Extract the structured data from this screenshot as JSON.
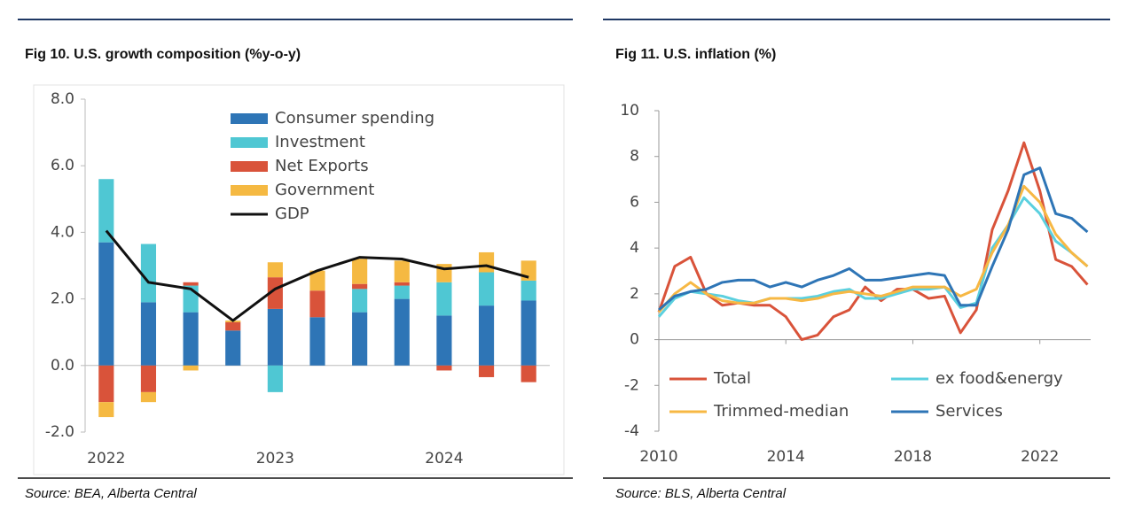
{
  "chart_data": [
    {
      "type": "bar",
      "title": "Fig 10. U.S. growth composition (%y-o-y)",
      "source": "Source: BEA, Alberta Central",
      "categories": [
        "2022",
        null,
        null,
        null,
        "2023",
        null,
        null,
        null,
        "2024",
        null,
        null
      ],
      "stacked": true,
      "legend": "upper right",
      "series": [
        {
          "name": "Consumer spending",
          "color": "#2e75b6",
          "values": [
            3.7,
            1.9,
            1.6,
            1.05,
            1.7,
            1.45,
            1.6,
            2.0,
            1.5,
            1.8,
            1.95
          ]
        },
        {
          "name": "Investment",
          "color": "#4fc7d3",
          "values": [
            1.9,
            1.75,
            0.8,
            0,
            -0.8,
            0,
            0.7,
            0.4,
            1.0,
            1.0,
            0.6
          ]
        },
        {
          "name": "Net Exports",
          "color": "#d9533a",
          "values": [
            -1.1,
            -0.8,
            0.1,
            0.25,
            0.95,
            0.8,
            0.15,
            0.1,
            -0.15,
            -0.35,
            -0.5
          ]
        },
        {
          "name": "Government",
          "color": "#f5b942",
          "values": [
            -0.45,
            -0.3,
            -0.15,
            0.05,
            0.45,
            0.6,
            0.75,
            0.65,
            0.55,
            0.6,
            0.6
          ]
        },
        {
          "name": "GDP",
          "color": "#111111",
          "type": "line",
          "values": [
            4.05,
            2.5,
            2.3,
            1.35,
            2.3,
            2.85,
            3.25,
            3.2,
            2.9,
            3.0,
            2.65
          ]
        }
      ],
      "ylim": [
        -2,
        8
      ],
      "yticks": [
        {
          "value": -2,
          "label": "-2.0"
        },
        {
          "value": 0,
          "label": "0.0"
        },
        {
          "value": 2,
          "label": "2.0"
        },
        {
          "value": 4,
          "label": "4.0"
        },
        {
          "value": 6,
          "label": "6.0"
        },
        {
          "value": 8,
          "label": "8.0"
        }
      ]
    },
    {
      "type": "line",
      "title": "Fig 11. U.S. inflation (%)",
      "source": "Source: BLS, Alberta Central",
      "legend": "lower",
      "x": [
        2010,
        2010.5,
        2011,
        2011.5,
        2012,
        2012.5,
        2013,
        2013.5,
        2014,
        2014.5,
        2015,
        2015.5,
        2016,
        2016.5,
        2017,
        2017.5,
        2018,
        2018.5,
        2019,
        2019.5,
        2020,
        2020.5,
        2021,
        2021.5,
        2022,
        2022.5,
        2023,
        2023.5
      ],
      "series": [
        {
          "name": "Total",
          "color": "#d9533a",
          "values": [
            1.2,
            3.2,
            3.6,
            2.0,
            1.5,
            1.6,
            1.5,
            1.5,
            1.0,
            0.0,
            0.2,
            1.0,
            1.3,
            2.3,
            1.7,
            2.2,
            2.2,
            1.8,
            1.9,
            0.3,
            1.3,
            4.8,
            6.5,
            8.6,
            6.5,
            3.5,
            3.2,
            2.4
          ]
        },
        {
          "name": "ex food&energy",
          "color": "#5bd0df",
          "values": [
            1.0,
            1.8,
            2.1,
            2.0,
            1.9,
            1.7,
            1.6,
            1.8,
            1.8,
            1.8,
            1.9,
            2.1,
            2.2,
            1.8,
            1.8,
            2.0,
            2.2,
            2.2,
            2.3,
            1.4,
            1.6,
            4.0,
            5.0,
            6.2,
            5.5,
            4.3,
            3.8,
            3.2
          ]
        },
        {
          "name": "Trimmed-median",
          "color": "#f7b844",
          "values": [
            1.2,
            2.0,
            2.5,
            2.0,
            1.7,
            1.6,
            1.6,
            1.8,
            1.8,
            1.7,
            1.8,
            2.0,
            2.1,
            2.0,
            1.9,
            2.1,
            2.3,
            2.3,
            2.3,
            1.9,
            2.2,
            3.8,
            5.0,
            6.7,
            6.0,
            4.6,
            3.8,
            3.2
          ]
        },
        {
          "name": "Services",
          "color": "#2e75b6",
          "values": [
            1.3,
            1.9,
            2.1,
            2.2,
            2.5,
            2.6,
            2.6,
            2.3,
            2.5,
            2.3,
            2.6,
            2.8,
            3.1,
            2.6,
            2.6,
            2.7,
            2.8,
            2.9,
            2.8,
            1.5,
            1.5,
            3.2,
            4.8,
            7.2,
            7.5,
            5.5,
            5.3,
            4.7
          ]
        }
      ],
      "xlim": [
        2010,
        2023.6
      ],
      "xticks": [
        2010,
        2014,
        2018,
        2022
      ],
      "ylim": [
        -4,
        10
      ],
      "yticks": [
        -4,
        -2,
        0,
        2,
        4,
        6,
        8,
        10
      ]
    }
  ]
}
